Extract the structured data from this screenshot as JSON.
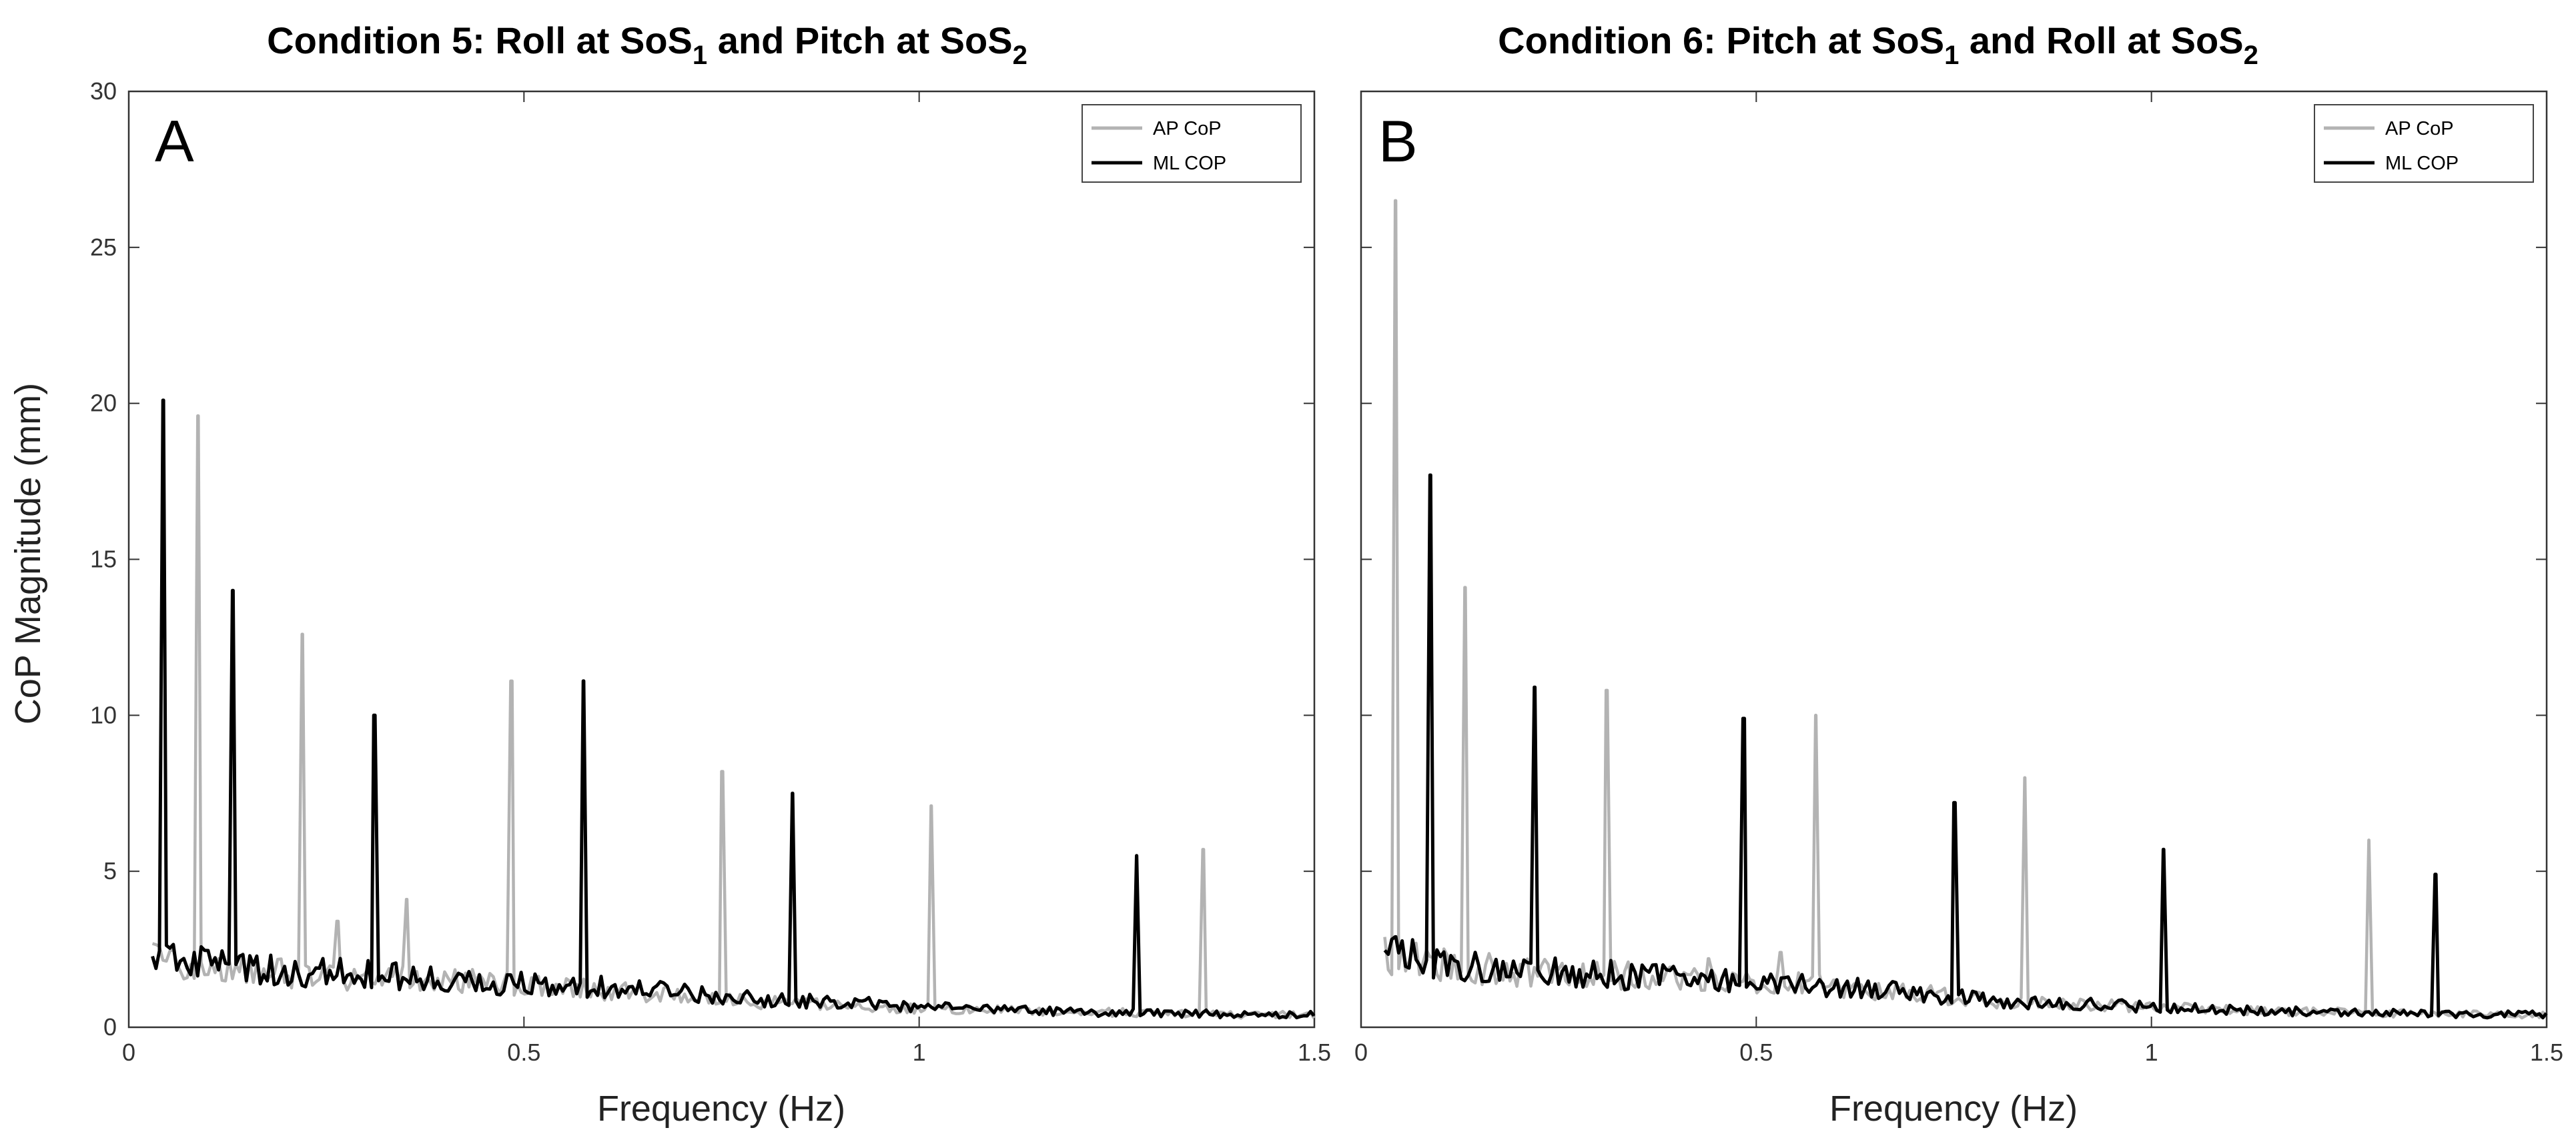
{
  "figure": {
    "ylabel": "CoP Magnitude (mm)"
  },
  "chart_data": [
    {
      "type": "line",
      "panel": "A",
      "title_main": "Condition 5: Roll at SoS",
      "title_sub1": "1",
      "title_mid": " and Pitch at SoS",
      "title_sub2": "2",
      "xlabel": "Frequency (Hz)",
      "ylabel": "CoP Magnitude (mm)",
      "xlim": [
        0,
        1.5
      ],
      "ylim": [
        0,
        30
      ],
      "xticks": [
        0,
        0.5,
        1,
        1.5
      ],
      "xtick_labels": [
        "0",
        "0.5",
        "1",
        "1.5"
      ],
      "yticks": [
        0,
        5,
        10,
        15,
        20,
        25,
        30
      ],
      "ytick_labels": [
        "0",
        "5",
        "10",
        "15",
        "20",
        "25",
        "30"
      ],
      "grid": false,
      "legend_position": "top-right",
      "series": [
        {
          "name": "AP CoP",
          "color": "#b3b3b3",
          "baseline": [
            [
              0.03,
              2.2
            ],
            [
              0.1,
              2.0
            ],
            [
              0.2,
              1.7
            ],
            [
              0.3,
              1.6
            ],
            [
              0.4,
              1.5
            ],
            [
              0.5,
              1.4
            ],
            [
              0.6,
              1.2
            ],
            [
              0.7,
              1.0
            ],
            [
              0.8,
              0.8
            ],
            [
              0.9,
              0.7
            ],
            [
              1.0,
              0.6
            ],
            [
              1.1,
              0.55
            ],
            [
              1.2,
              0.5
            ],
            [
              1.3,
              0.45
            ],
            [
              1.4,
              0.4
            ],
            [
              1.5,
              0.4
            ]
          ],
          "peaks": [
            [
              0.088,
              19.6
            ],
            [
              0.22,
              12.6
            ],
            [
              0.265,
              3.4
            ],
            [
              0.352,
              4.1
            ],
            [
              0.485,
              11.1
            ],
            [
              0.75,
              8.2
            ],
            [
              1.015,
              7.1
            ],
            [
              1.36,
              5.7
            ]
          ]
        },
        {
          "name": "ML COP",
          "color": "#000000",
          "baseline": [
            [
              0.03,
              2.3
            ],
            [
              0.1,
              2.0
            ],
            [
              0.2,
              1.8
            ],
            [
              0.3,
              1.7
            ],
            [
              0.4,
              1.5
            ],
            [
              0.5,
              1.4
            ],
            [
              0.6,
              1.3
            ],
            [
              0.7,
              1.1
            ],
            [
              0.8,
              0.9
            ],
            [
              0.9,
              0.8
            ],
            [
              1.0,
              0.65
            ],
            [
              1.1,
              0.55
            ],
            [
              1.2,
              0.5
            ],
            [
              1.3,
              0.45
            ],
            [
              1.4,
              0.42
            ],
            [
              1.5,
              0.4
            ]
          ],
          "peaks": [
            [
              0.044,
              20.1
            ],
            [
              0.132,
              14.0
            ],
            [
              0.31,
              10.0
            ],
            [
              0.575,
              11.1
            ],
            [
              0.84,
              7.5
            ],
            [
              1.275,
              5.5
            ]
          ]
        }
      ]
    },
    {
      "type": "line",
      "panel": "B",
      "title_main": "Condition 6: Pitch at SoS",
      "title_sub1": "1",
      "title_mid": " and Roll at SoS",
      "title_sub2": "2",
      "xlabel": "Frequency (Hz)",
      "xlim": [
        0,
        1.5
      ],
      "ylim": [
        0,
        30
      ],
      "xticks": [
        0,
        0.5,
        1,
        1.5
      ],
      "xtick_labels": [
        "0",
        "0.5",
        "1",
        "1.5"
      ],
      "yticks": [
        0,
        5,
        10,
        15,
        20,
        25,
        30
      ],
      "grid": false,
      "legend_position": "top-right",
      "series": [
        {
          "name": "AP CoP",
          "color": "#b3b3b3",
          "baseline": [
            [
              0.03,
              2.3
            ],
            [
              0.1,
              2.0
            ],
            [
              0.2,
              1.8
            ],
            [
              0.3,
              1.7
            ],
            [
              0.4,
              1.6
            ],
            [
              0.5,
              1.5
            ],
            [
              0.6,
              1.3
            ],
            [
              0.7,
              1.1
            ],
            [
              0.8,
              0.85
            ],
            [
              0.9,
              0.75
            ],
            [
              1.0,
              0.65
            ],
            [
              1.1,
              0.55
            ],
            [
              1.2,
              0.5
            ],
            [
              1.3,
              0.45
            ],
            [
              1.4,
              0.42
            ],
            [
              1.5,
              0.4
            ]
          ],
          "peaks": [
            [
              0.044,
              26.5
            ],
            [
              0.132,
              14.1
            ],
            [
              0.31,
              10.8
            ],
            [
              0.44,
              2.2
            ],
            [
              0.53,
              2.4
            ],
            [
              0.575,
              10.0
            ],
            [
              0.84,
              8.0
            ],
            [
              1.275,
              6.0
            ]
          ]
        },
        {
          "name": "ML COP",
          "color": "#000000",
          "baseline": [
            [
              0.03,
              2.4
            ],
            [
              0.1,
              2.0
            ],
            [
              0.2,
              1.8
            ],
            [
              0.3,
              1.7
            ],
            [
              0.4,
              1.6
            ],
            [
              0.5,
              1.5
            ],
            [
              0.6,
              1.3
            ],
            [
              0.7,
              1.1
            ],
            [
              0.8,
              0.85
            ],
            [
              0.9,
              0.75
            ],
            [
              1.0,
              0.65
            ],
            [
              1.1,
              0.55
            ],
            [
              1.2,
              0.5
            ],
            [
              1.3,
              0.45
            ],
            [
              1.4,
              0.42
            ],
            [
              1.5,
              0.4
            ]
          ],
          "peaks": [
            [
              0.044,
              2.9
            ],
            [
              0.088,
              17.7
            ],
            [
              0.22,
              10.9
            ],
            [
              0.485,
              9.9
            ],
            [
              0.75,
              7.2
            ],
            [
              1.015,
              5.7
            ],
            [
              1.36,
              4.9
            ]
          ]
        }
      ]
    }
  ]
}
